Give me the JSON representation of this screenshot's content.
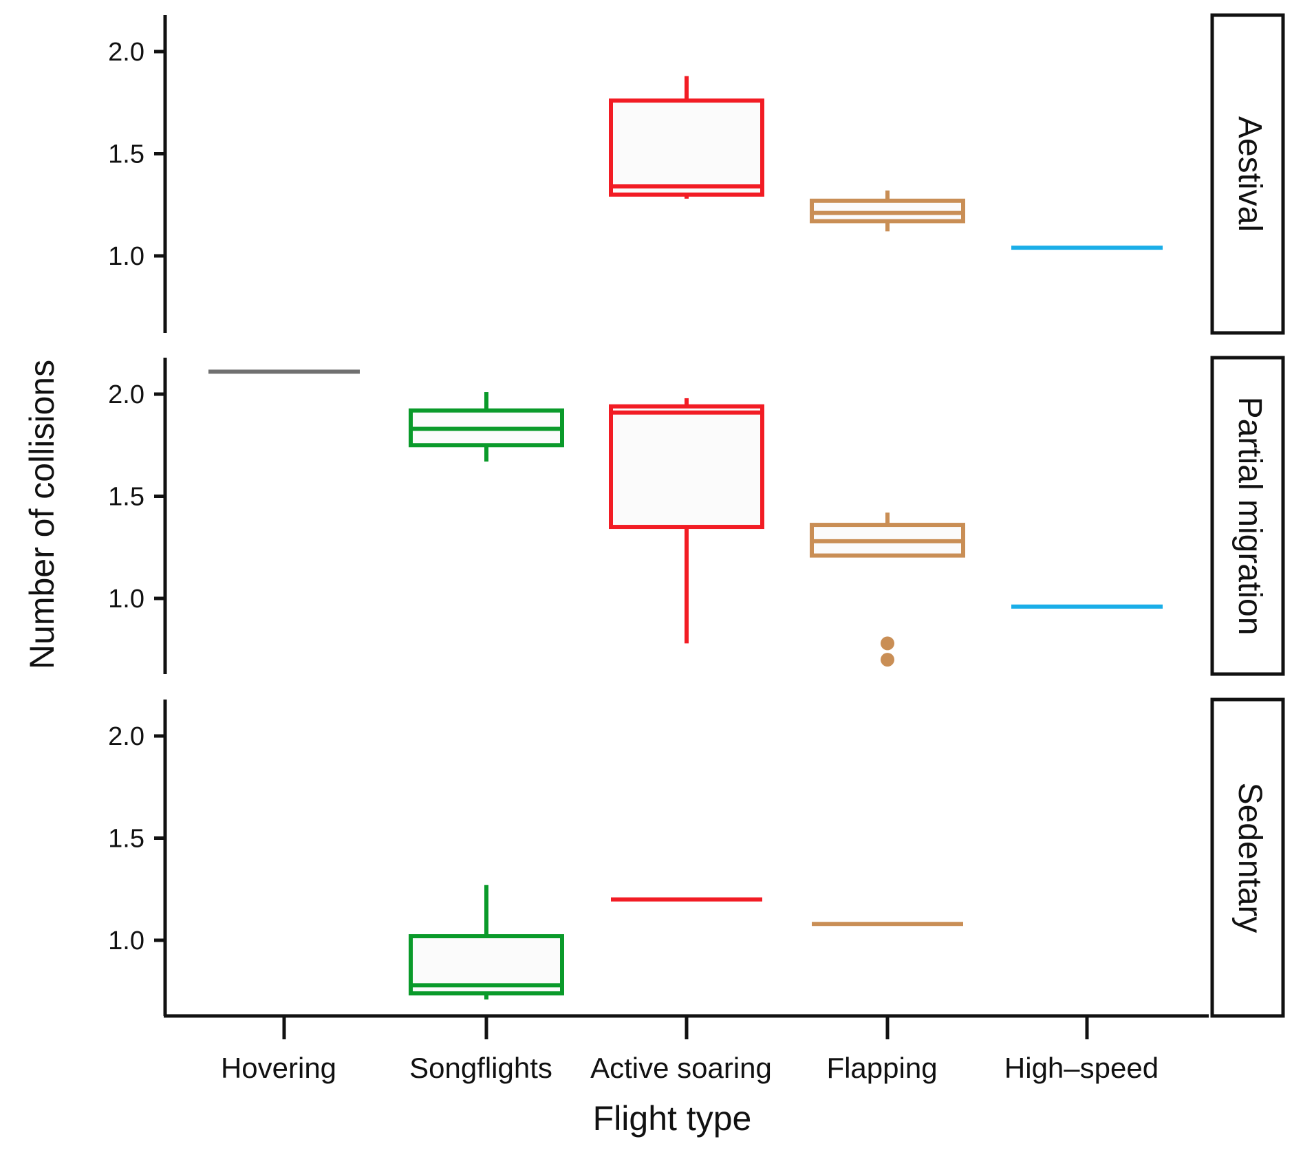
{
  "chart_data": {
    "type": "boxplot",
    "layout": "faceted-vertical",
    "xlabel": "Flight type",
    "ylabel": "Number of collisions",
    "ylim": [
      0.65,
      2.2
    ],
    "yticks": [
      1.0,
      1.5,
      2.0
    ],
    "ytick_labels": [
      "1.0",
      "1.5",
      "2.0"
    ],
    "categories": [
      "Hovering",
      "Songflights",
      "Active soaring",
      "Flapping",
      "High–speed"
    ],
    "colors": [
      "#707070",
      "#0a9a2a",
      "#f21c24",
      "#c98e55",
      "#1aaee8"
    ],
    "panels": [
      {
        "label": "Aestival",
        "boxes": [
          null,
          null,
          {
            "whisker_low": 1.28,
            "q1": 1.3,
            "median": 1.34,
            "q3": 1.76,
            "whisker_high": 1.88,
            "outliers": []
          },
          {
            "whisker_low": 1.12,
            "q1": 1.17,
            "median": 1.21,
            "q3": 1.27,
            "whisker_high": 1.32,
            "outliers": []
          },
          {
            "whisker_low": 1.04,
            "q1": 1.04,
            "median": 1.04,
            "q3": 1.04,
            "whisker_high": 1.04,
            "outliers": []
          }
        ]
      },
      {
        "label": "Partial migration",
        "boxes": [
          {
            "whisker_low": 2.11,
            "q1": 2.11,
            "median": 2.11,
            "q3": 2.11,
            "whisker_high": 2.11,
            "outliers": []
          },
          {
            "whisker_low": 1.67,
            "q1": 1.75,
            "median": 1.83,
            "q3": 1.92,
            "whisker_high": 2.01,
            "outliers": []
          },
          {
            "whisker_low": 0.78,
            "q1": 1.35,
            "median": 1.91,
            "q3": 1.94,
            "whisker_high": 1.98,
            "outliers": []
          },
          {
            "whisker_low": 1.21,
            "q1": 1.21,
            "median": 1.28,
            "q3": 1.36,
            "whisker_high": 1.42,
            "outliers": [
              0.78,
              0.7
            ]
          },
          {
            "whisker_low": 0.96,
            "q1": 0.96,
            "median": 0.96,
            "q3": 0.96,
            "whisker_high": 0.96,
            "outliers": []
          }
        ]
      },
      {
        "label": "Sedentary",
        "boxes": [
          null,
          {
            "whisker_low": 0.71,
            "q1": 0.74,
            "median": 0.78,
            "q3": 1.02,
            "whisker_high": 1.27,
            "outliers": []
          },
          {
            "whisker_low": 1.2,
            "q1": 1.2,
            "median": 1.2,
            "q3": 1.2,
            "whisker_high": 1.2,
            "outliers": []
          },
          {
            "whisker_low": 1.08,
            "q1": 1.08,
            "median": 1.08,
            "q3": 1.08,
            "whisker_high": 1.08,
            "outliers": []
          },
          null
        ]
      }
    ]
  }
}
